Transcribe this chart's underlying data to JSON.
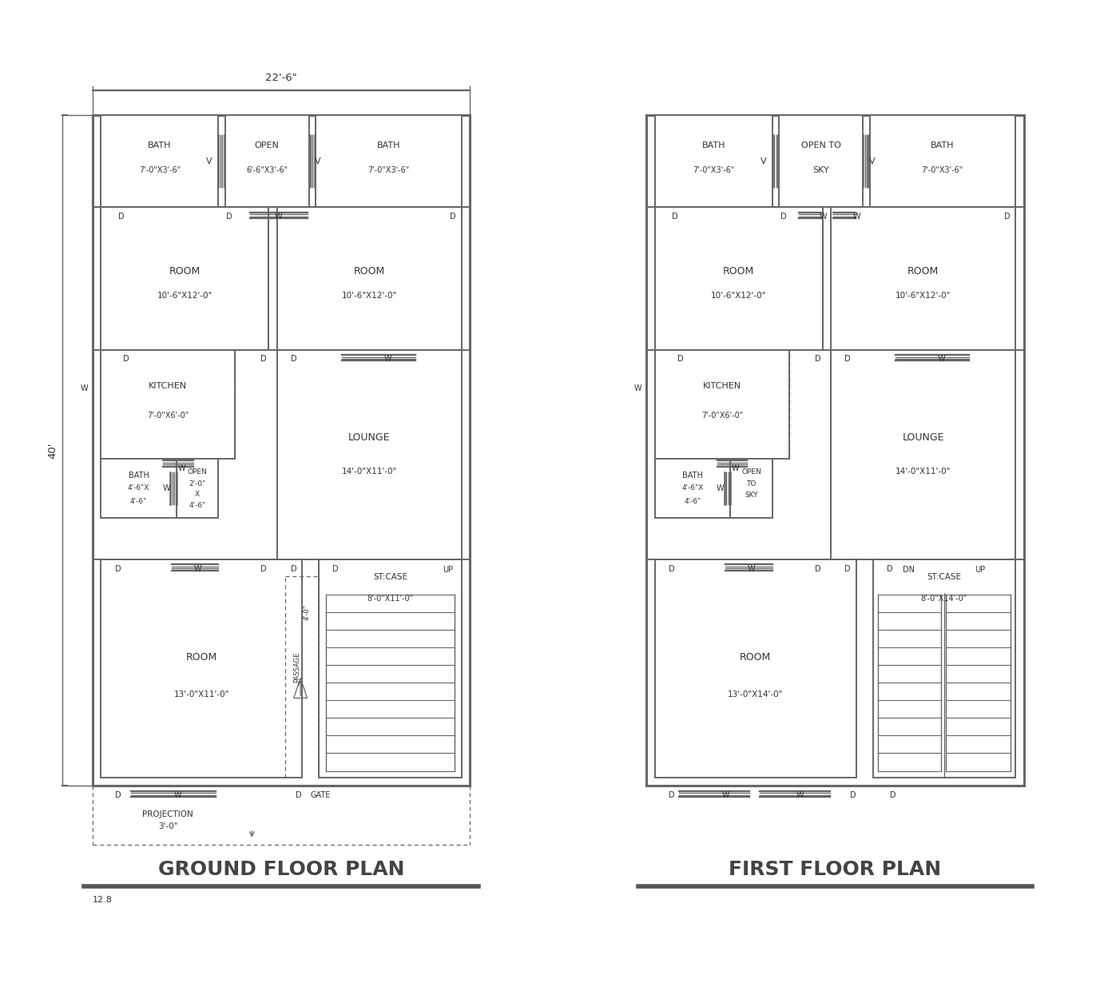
{
  "bg_color": "#ffffff",
  "line_color": "#666666",
  "text_color": "#333333",
  "gfp_title": "GROUND FLOOR PLAN",
  "ffp_title": "FIRST FLOOR PLAN",
  "scale_label": "12.8",
  "dim_width": "22'-6\"",
  "dim_height": "40'"
}
